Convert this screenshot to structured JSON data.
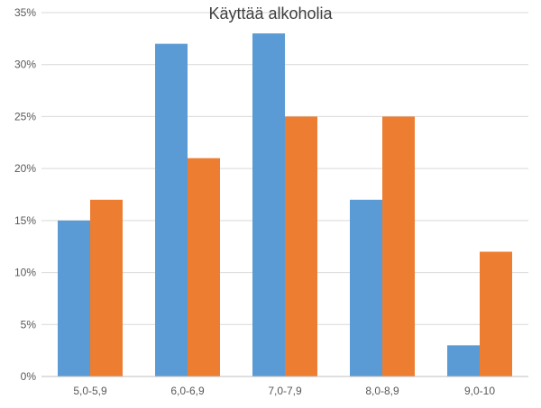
{
  "chart_data": {
    "type": "bar",
    "title": "Käyttää alkoholia",
    "categories": [
      "5,0-5,9",
      "6,0-6,9",
      "7,0-7,9",
      "8,0-8,9",
      "9,0-10"
    ],
    "series": [
      {
        "values": [
          15,
          32,
          33,
          17,
          3
        ],
        "color": "#5b9bd5"
      },
      {
        "values": [
          17,
          21,
          25,
          25,
          12
        ],
        "color": "#ed7d31"
      }
    ],
    "ylim": [
      0,
      35
    ],
    "yticks": [
      "0%",
      "5%",
      "10%",
      "15%",
      "20%",
      "25%",
      "30%",
      "35%"
    ],
    "ytick_values": [
      0,
      5,
      10,
      15,
      20,
      25,
      30,
      35
    ],
    "grid": true,
    "legend": "none"
  },
  "colors": {
    "gridline": "#d9d9d9",
    "axis": "#bfbfbf"
  }
}
